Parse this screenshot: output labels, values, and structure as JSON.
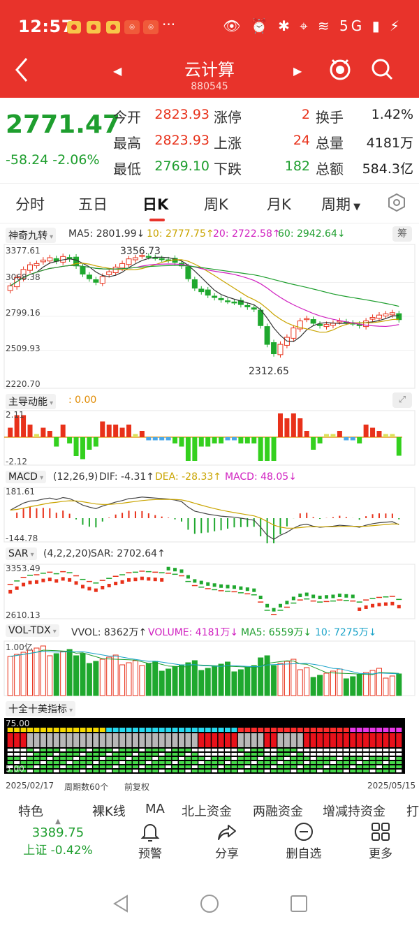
{
  "status": {
    "time": "12:57",
    "more": "···",
    "icons": "👁 ⏰ ✱ ⌖ ≋ 5G ▮ ⚡"
  },
  "header": {
    "title": "云计算",
    "code": "880545"
  },
  "quote": {
    "price": "2771.47",
    "change": "-58.24",
    "change_pct": "-2.06%",
    "rows": [
      {
        "l1": "今开",
        "v1": "2823.93",
        "l2": "涨停",
        "v2": "2",
        "l3": "换手",
        "v3": "1.42%"
      },
      {
        "l1": "最高",
        "v1": "2823.93",
        "l2": "上涨",
        "v2": "24",
        "l3": "总量",
        "v3": "4181万"
      },
      {
        "l1": "最低",
        "v1": "2769.10",
        "l2": "下跌",
        "v2": "182",
        "l3": "总额",
        "v3": "584.3亿"
      }
    ]
  },
  "tabs": [
    "分时",
    "五日",
    "日K",
    "周K",
    "月K",
    "周期"
  ],
  "kline": {
    "indicator": "神奇九转",
    "ma5": "MA5: 2801.99↓",
    "ma10": "10: 2777.75↑",
    "ma20": "20: 2722.58↑",
    "ma60": "60: 2942.64↓",
    "badge": "筹",
    "axis": [
      "3377.61",
      "3068.38",
      "2799.16",
      "2509.93",
      "2220.70"
    ],
    "high_label": "3356.73",
    "low_label": "2312.65"
  },
  "zhudao": {
    "name": "主导动能",
    "value": ": 0.00",
    "axis_top": "2.11",
    "axis_bot": "-2.12"
  },
  "macd": {
    "name": "MACD",
    "params": "(12,26,9)",
    "dif": "DIF: -4.31↑",
    "dea": "DEA: -28.33↑",
    "macd": "MACD: 48.05↓",
    "axis_top": "181.61",
    "axis_bot": "-144.78"
  },
  "sar": {
    "name": "SAR",
    "params": "(4,2,2,20)",
    "value": "SAR: 2702.64↑",
    "axis_top": "3353.49",
    "axis_bot": "2610.13"
  },
  "vol": {
    "name": "VOL-TDX",
    "vvol": "VVOL: 8362万↑",
    "volume": "VOLUME: 4181万↓",
    "ma5": "MA5: 6559万↓",
    "ma10": "10: 7275万↓",
    "axis_top": "1.00亿"
  },
  "shiquan": {
    "name": "十全十美指标",
    "axis_top": "75.00",
    "axis_bot": "5.00"
  },
  "bottom_info": {
    "start": "2025/02/17",
    "period": "周期数60个",
    "adjust": "前复权",
    "end": "2025/05/15"
  },
  "feature_tabs": [
    "特色",
    "裸K线",
    "MA",
    "北上资金",
    "两融资金",
    "增减持资金",
    "打"
  ],
  "nav": {
    "index_price": "3389.75",
    "index_name": "上证",
    "index_change": "-0.42%",
    "items": [
      "预警",
      "分享",
      "删自选",
      "更多"
    ]
  },
  "chart_data": {
    "type": "candlestick",
    "x_start": "2025/02/17",
    "x_end": "2025/05/15",
    "periods": 60,
    "ylim": [
      2220.7,
      3377.61
    ],
    "annotations": [
      {
        "label": "3356.73",
        "type": "high"
      },
      {
        "label": "2312.65",
        "type": "low"
      }
    ],
    "closes": [
      3060,
      3130,
      3200,
      3240,
      3250,
      3280,
      3300,
      3270,
      3310,
      3290,
      3230,
      3160,
      3120,
      3090,
      3140,
      3180,
      3220,
      3250,
      3290,
      3300,
      3320,
      3310,
      3300,
      3290,
      3280,
      3260,
      3230,
      3120,
      3040,
      3010,
      2980,
      2960,
      2940,
      2930,
      2920,
      2900,
      2880,
      2860,
      2720,
      2560,
      2480,
      2560,
      2620,
      2700,
      2760,
      2780,
      2740,
      2720,
      2730,
      2740,
      2760,
      2750,
      2740,
      2720,
      2760,
      2790,
      2810,
      2820,
      2830,
      2771
    ]
  }
}
